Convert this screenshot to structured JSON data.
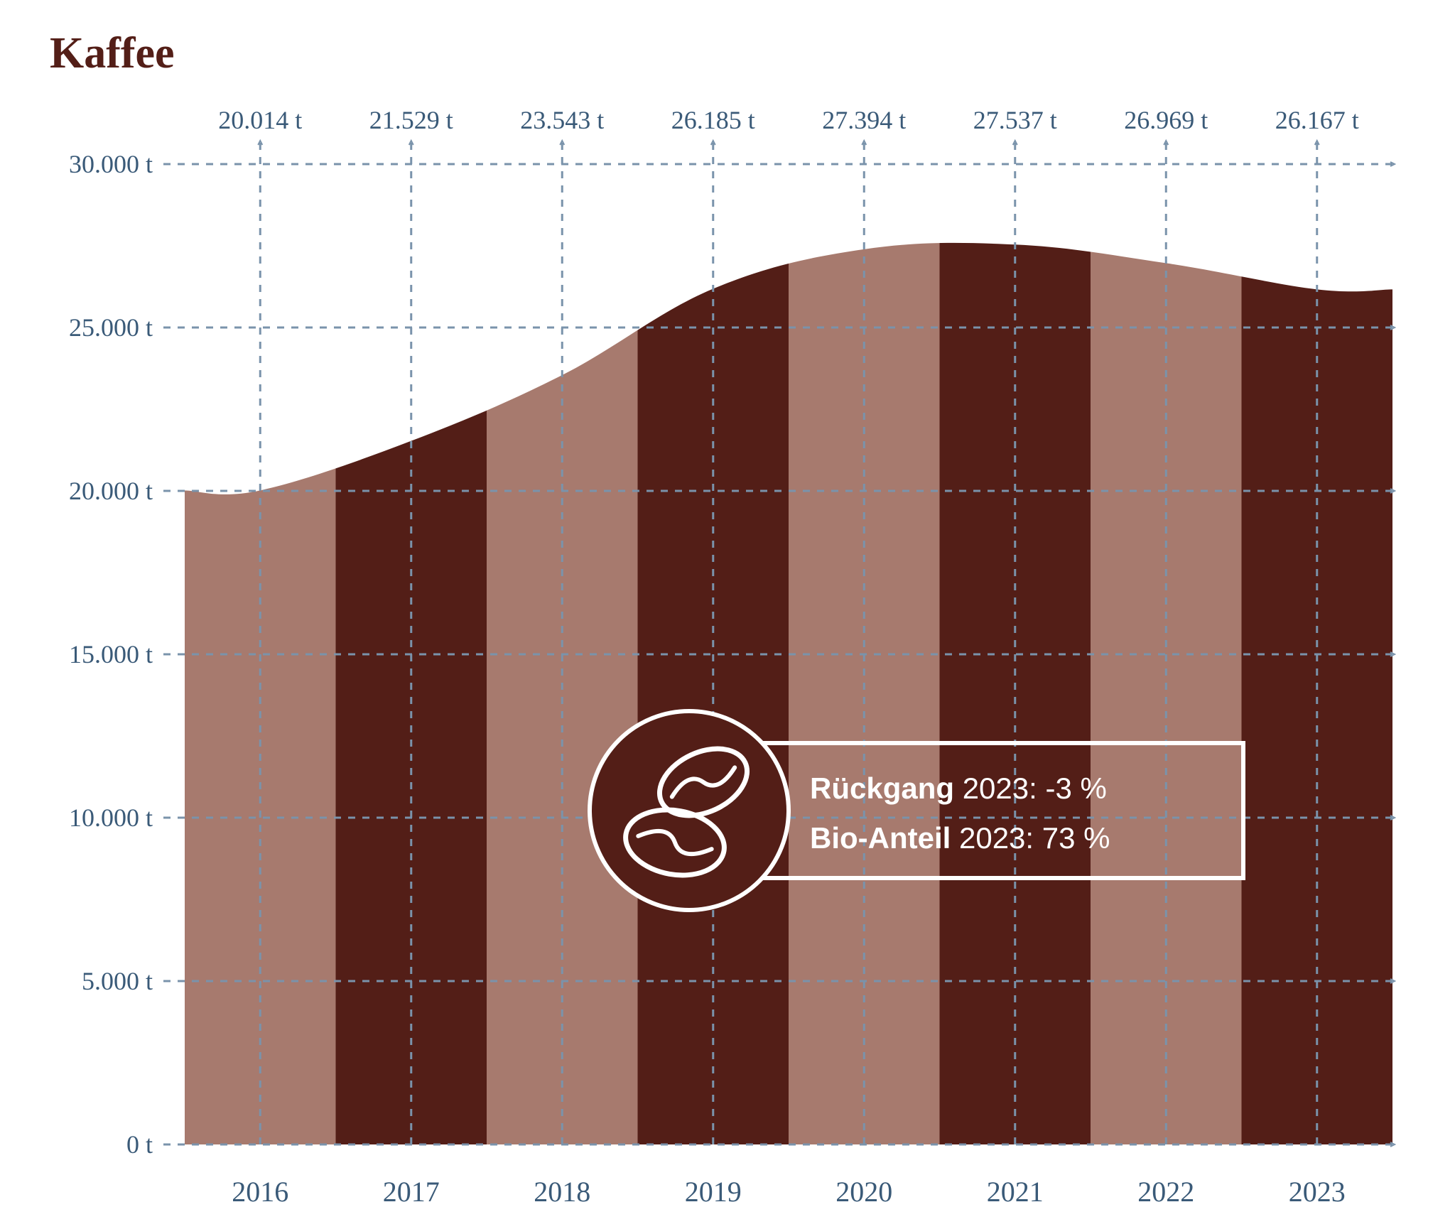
{
  "chart": {
    "type": "area",
    "title": "Kaffee",
    "title_fontsize": 62,
    "title_color": "#531e17",
    "years": [
      2016,
      2017,
      2018,
      2019,
      2020,
      2021,
      2022,
      2023
    ],
    "values": [
      20014,
      21529,
      23543,
      26185,
      27394,
      27537,
      26969,
      26167
    ],
    "top_labels": [
      "20.014 t",
      "21.529 t",
      "23.543 t",
      "26.185 t",
      "27.394 t",
      "27.537 t",
      "26.969 t",
      "26.167 t"
    ],
    "x_labels": [
      "2016",
      "2017",
      "2018",
      "2019",
      "2020",
      "2021",
      "2022",
      "2023"
    ],
    "y_ticks": [
      0,
      5000,
      10000,
      15000,
      20000,
      25000,
      30000
    ],
    "y_tick_labels": [
      "0 t",
      "5.000 t",
      "10.000 t",
      "15.000 t",
      "20.000 t",
      "25.000 t",
      "30.000 t"
    ],
    "ylim": [
      0,
      30000
    ],
    "stripe_colors": [
      "#a77a6e",
      "#531e17"
    ],
    "grid_color": "#7a93ab",
    "grid_stroke_width": 3,
    "axis_label_color": "#3a5a78",
    "top_label_fontsize": 36,
    "x_label_fontsize": 40,
    "y_label_fontsize": 36,
    "background_color": "#ffffff",
    "callout": {
      "line1_label": "Rückgang",
      "line1_value": "2023: -3 %",
      "line2_label": "Bio-Anteil",
      "line2_value": "2023: 73 %",
      "circle_fill": "#531e17",
      "stroke": "#ffffff",
      "stroke_width": 6,
      "text_color": "#ffffff",
      "font_size": 42
    }
  }
}
